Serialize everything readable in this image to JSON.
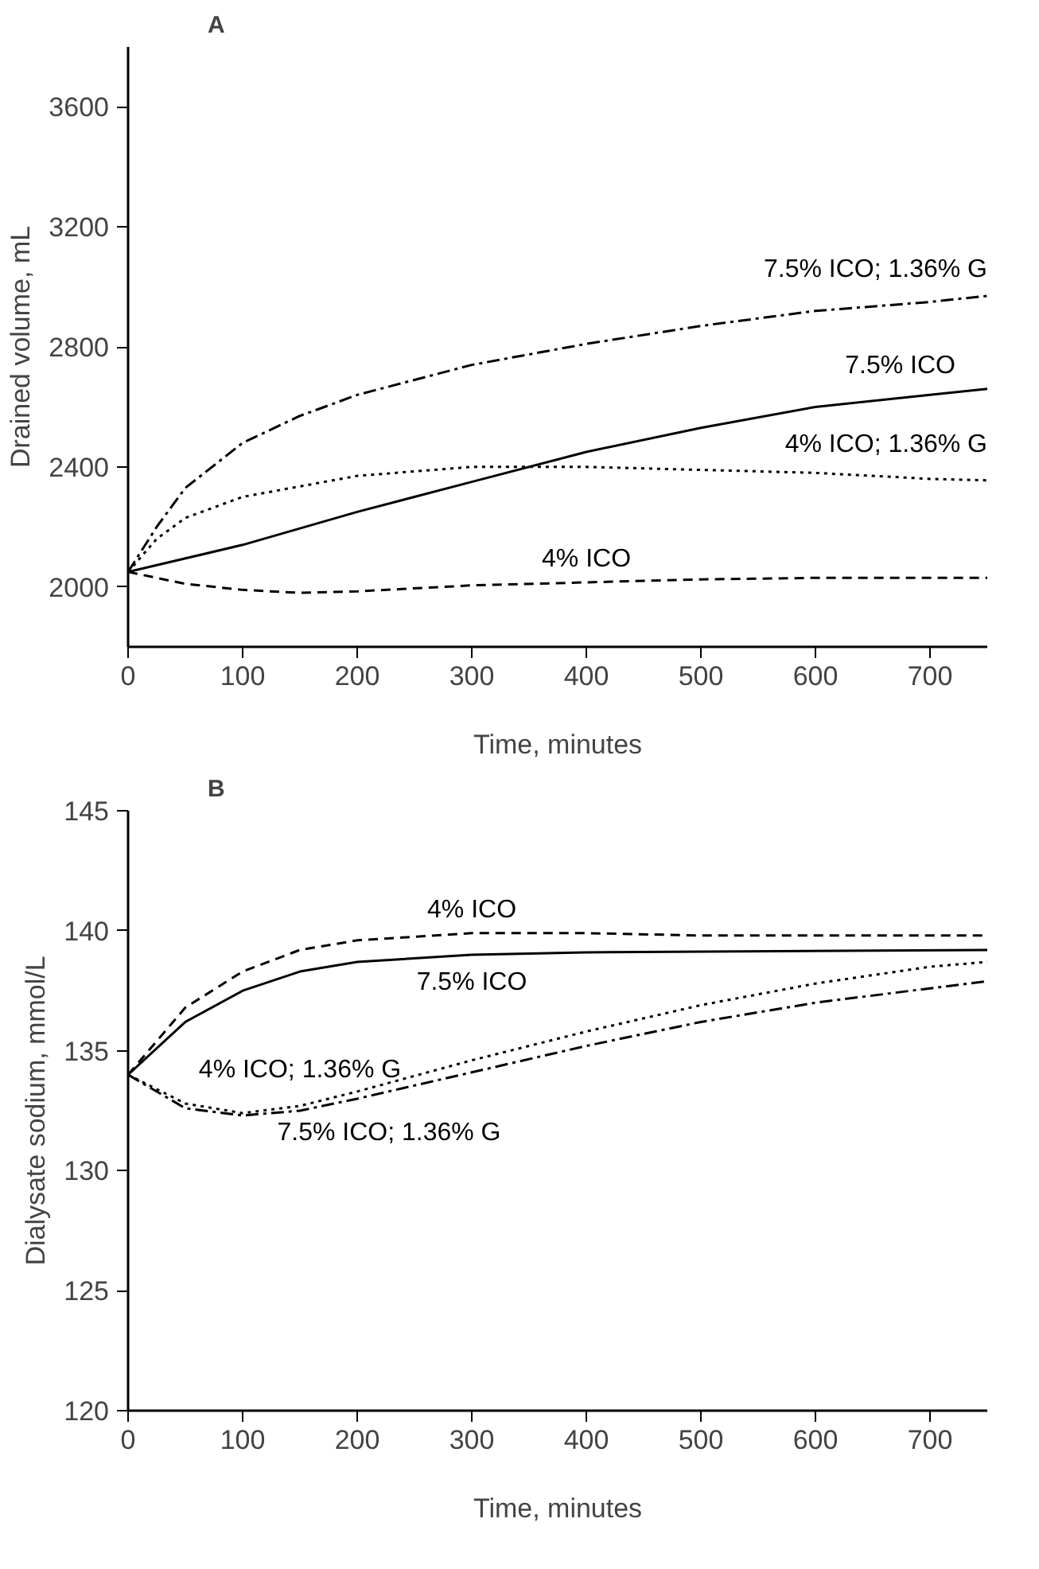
{
  "chart_data": [
    {
      "type": "line",
      "title": "A",
      "xlabel": "Time, minutes",
      "ylabel": "Drained volume, mL",
      "xlim": [
        0,
        750
      ],
      "ylim": [
        1800,
        3800
      ],
      "xticks": [
        0,
        100,
        200,
        300,
        400,
        500,
        600,
        700
      ],
      "yticks": [
        2000,
        2400,
        2800,
        3200,
        3600
      ],
      "grid": false,
      "legend": false,
      "series": [
        {
          "name": "7.5% ICO; 1.36% G",
          "color": "#000000",
          "line_style": "dashdot",
          "x": [
            0,
            25,
            50,
            100,
            150,
            200,
            300,
            400,
            500,
            600,
            700,
            750
          ],
          "values": [
            2050,
            2200,
            2330,
            2480,
            2570,
            2640,
            2740,
            2810,
            2870,
            2920,
            2950,
            2970
          ]
        },
        {
          "name": "7.5% ICO",
          "color": "#000000",
          "line_style": "solid",
          "x": [
            0,
            100,
            200,
            300,
            400,
            500,
            600,
            700,
            750
          ],
          "values": [
            2050,
            2140,
            2250,
            2350,
            2450,
            2530,
            2600,
            2640,
            2660
          ]
        },
        {
          "name": "4% ICO; 1.36% G",
          "color": "#000000",
          "line_style": "dotted",
          "x": [
            0,
            25,
            50,
            100,
            200,
            300,
            400,
            500,
            600,
            700,
            750
          ],
          "values": [
            2050,
            2160,
            2230,
            2300,
            2370,
            2400,
            2400,
            2390,
            2380,
            2360,
            2355
          ]
        },
        {
          "name": "4% ICO",
          "color": "#000000",
          "line_style": "dashed",
          "x": [
            0,
            50,
            100,
            150,
            200,
            300,
            400,
            500,
            600,
            750
          ],
          "values": [
            2050,
            2010,
            1990,
            1980,
            1985,
            2005,
            2015,
            2025,
            2030,
            2030
          ]
        }
      ]
    },
    {
      "type": "line",
      "title": "B",
      "xlabel": "Time, minutes",
      "ylabel": "Dialysate sodium, mmol/L",
      "xlim": [
        0,
        750
      ],
      "ylim": [
        120,
        145
      ],
      "xticks": [
        0,
        100,
        200,
        300,
        400,
        500,
        600,
        700
      ],
      "yticks": [
        120,
        125,
        130,
        135,
        140,
        145
      ],
      "grid": false,
      "legend": false,
      "series": [
        {
          "name": "4% ICO",
          "color": "#000000",
          "line_style": "dashed",
          "x": [
            0,
            50,
            100,
            150,
            200,
            300,
            400,
            500,
            750
          ],
          "values": [
            134,
            136.8,
            138.3,
            139.2,
            139.6,
            139.9,
            139.9,
            139.8,
            139.8
          ]
        },
        {
          "name": "7.5% ICO",
          "color": "#000000",
          "line_style": "solid",
          "x": [
            0,
            50,
            100,
            150,
            200,
            300,
            400,
            750
          ],
          "values": [
            134,
            136.2,
            137.5,
            138.3,
            138.7,
            139.0,
            139.1,
            139.2
          ]
        },
        {
          "name": "4% ICO; 1.36% G",
          "color": "#000000",
          "line_style": "dotted",
          "x": [
            0,
            50,
            100,
            150,
            200,
            300,
            400,
            500,
            600,
            700,
            750
          ],
          "values": [
            134,
            132.8,
            132.4,
            132.7,
            133.3,
            134.6,
            135.8,
            136.9,
            137.8,
            138.5,
            138.7
          ]
        },
        {
          "name": "7.5% ICO; 1.36% G",
          "color": "#000000",
          "line_style": "dashdot",
          "x": [
            0,
            50,
            100,
            150,
            200,
            300,
            400,
            500,
            600,
            700,
            750
          ],
          "values": [
            134,
            132.6,
            132.3,
            132.5,
            133.0,
            134.1,
            135.2,
            136.2,
            137.0,
            137.6,
            137.9
          ]
        }
      ]
    }
  ]
}
